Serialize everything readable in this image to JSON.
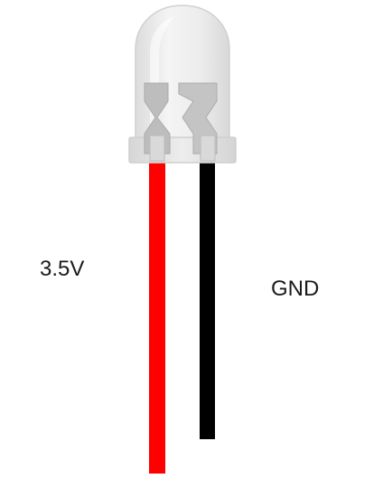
{
  "labels": {
    "positive_lead": "3.5V",
    "ground_lead": "GND"
  },
  "colors": {
    "positive_wire": "#ff0000",
    "ground_wire": "#000000",
    "led_body": "#e9e9e9",
    "led_outline": "#d2d2d2",
    "internal_frame": "#b9b9b9"
  },
  "icons": {
    "component": "led-icon"
  }
}
